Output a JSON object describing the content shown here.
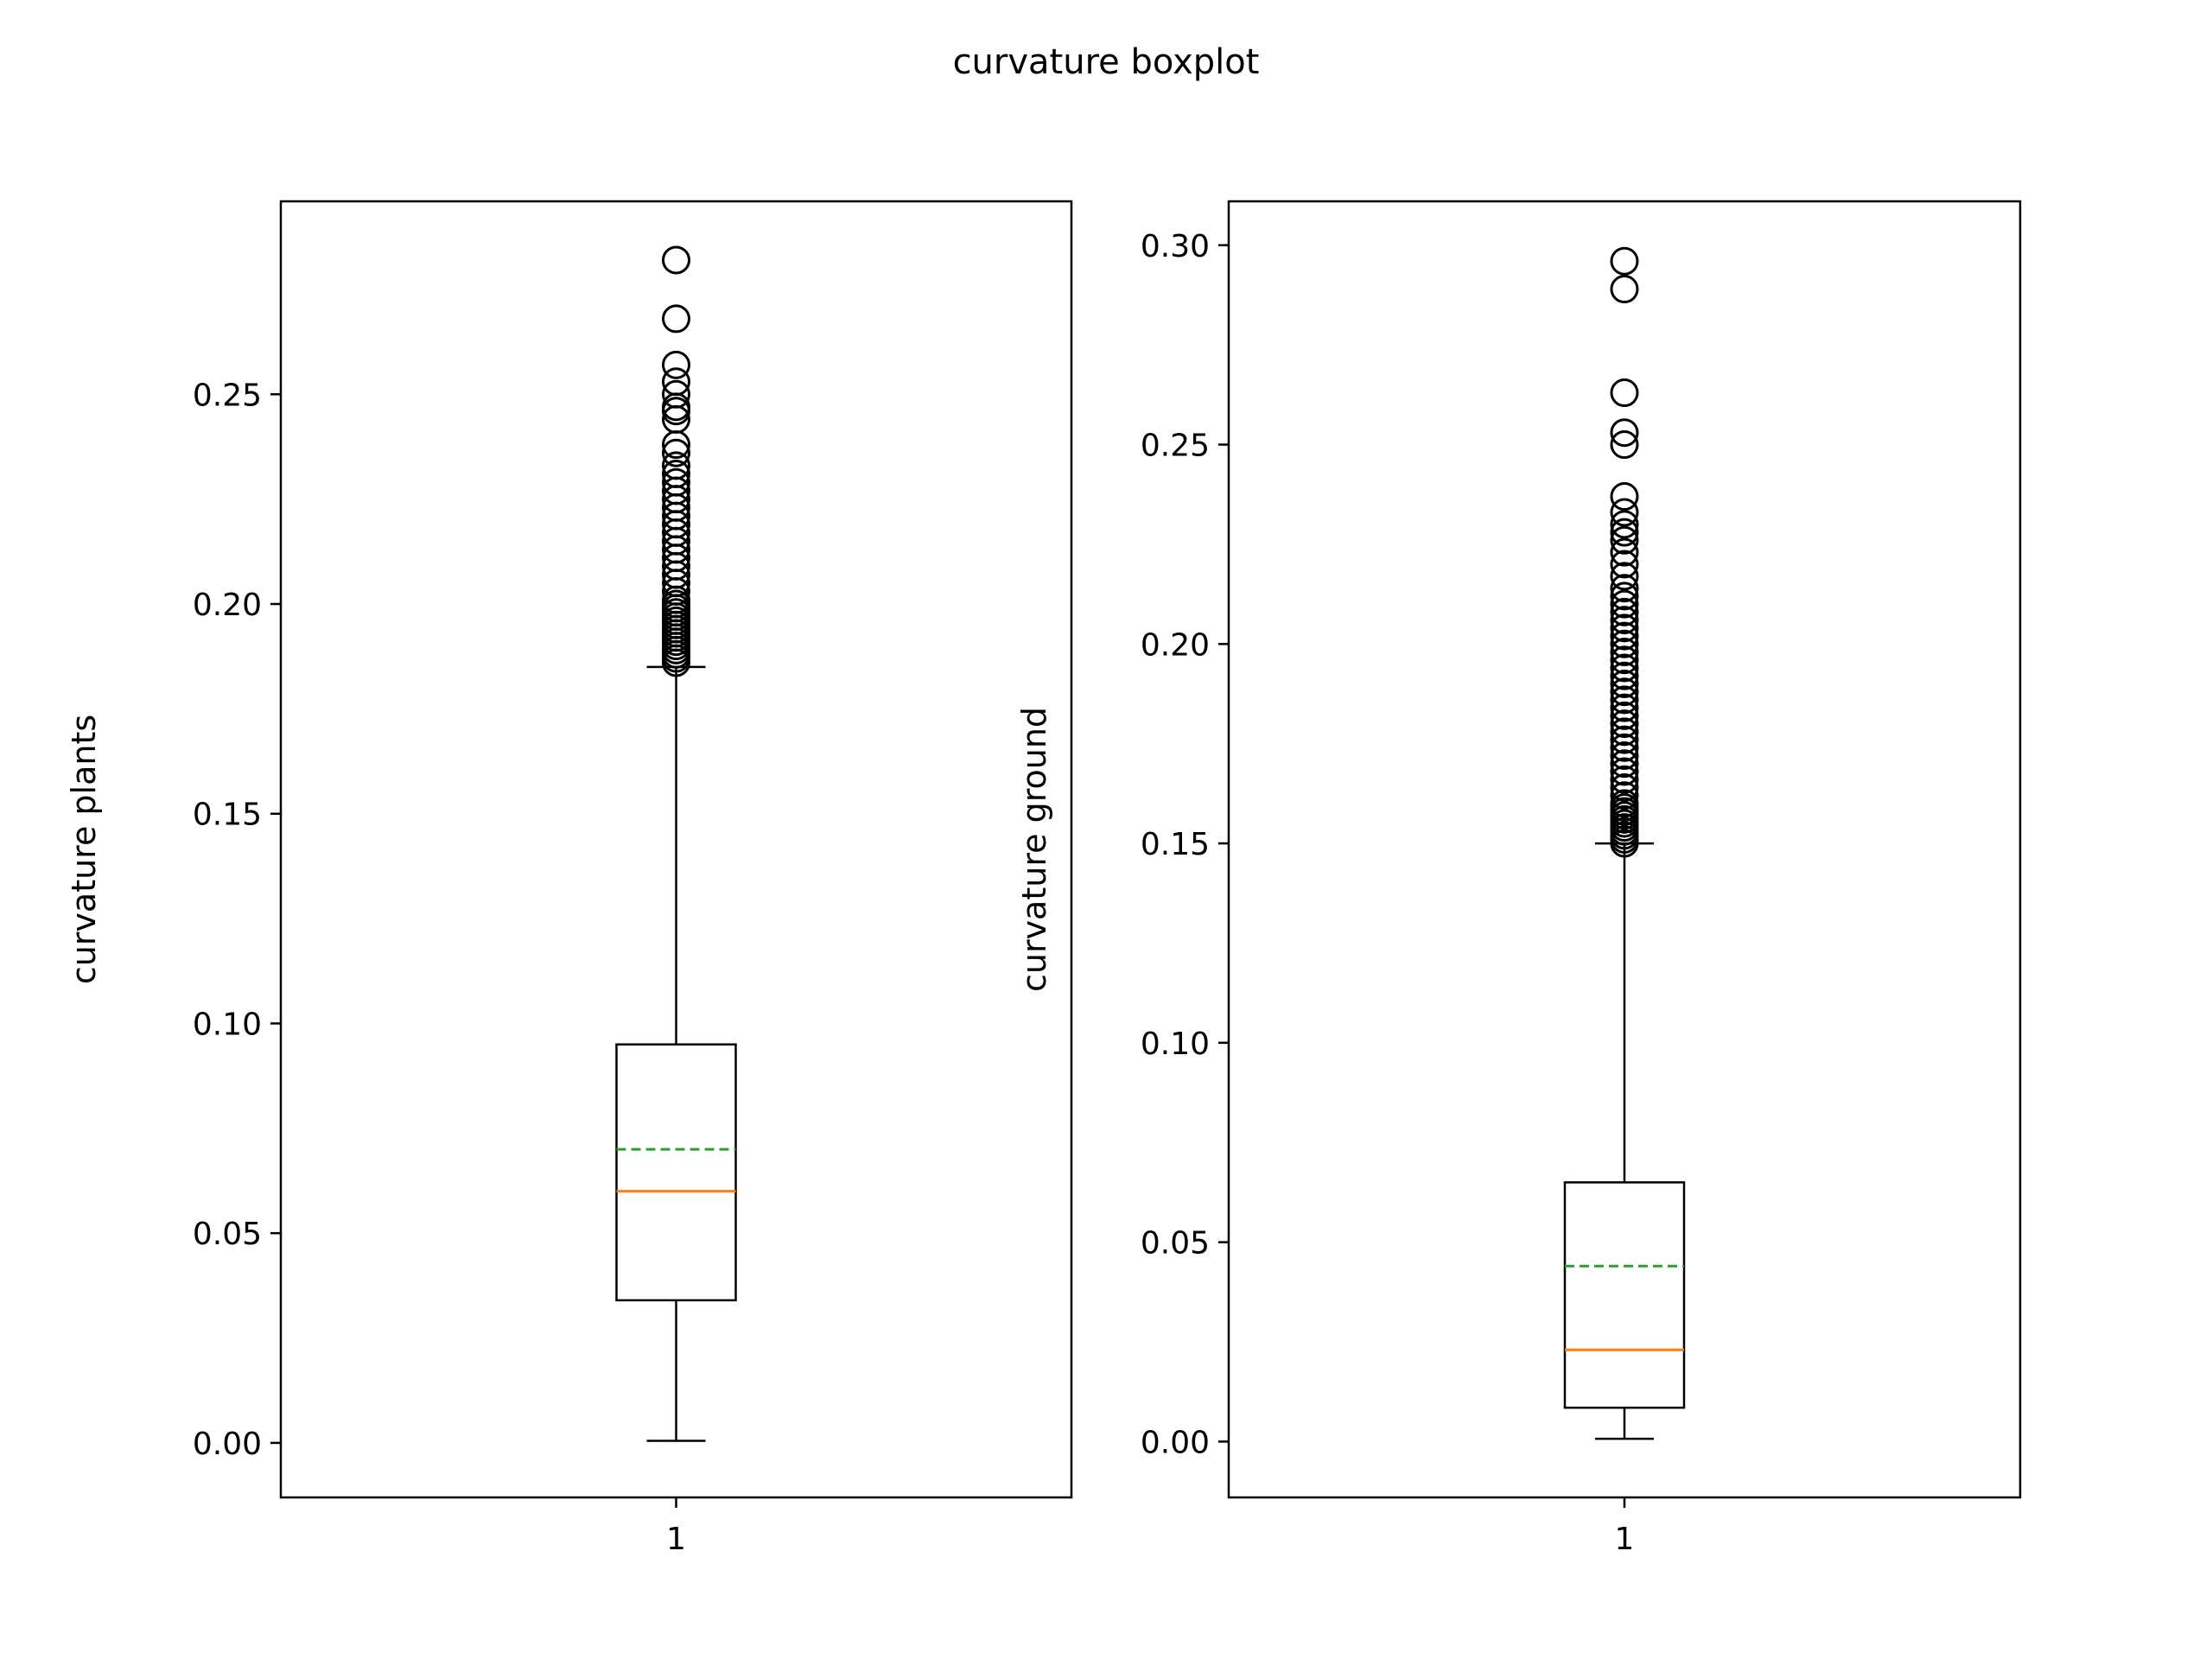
{
  "figure": {
    "suptitle": "curvature boxplot"
  },
  "colors": {
    "box": "#000000",
    "median": "#ff7f0e",
    "mean": "#2ca02c",
    "flier": "#000000"
  },
  "chart_data": [
    {
      "type": "box",
      "title": "",
      "xlabel": "",
      "ylabel": "curvature plants",
      "categories": [
        "1"
      ],
      "ylim": [
        -0.013,
        0.296
      ],
      "yticks": [
        0.0,
        0.05,
        0.1,
        0.15,
        0.2,
        0.25
      ],
      "ytick_labels": [
        "0.00",
        "0.05",
        "0.10",
        "0.15",
        "0.20",
        "0.25"
      ],
      "grid": false,
      "box": {
        "whisker_low": 0.0005,
        "q1": 0.034,
        "median": 0.06,
        "mean": 0.07,
        "q3": 0.095,
        "whisker_high": 0.185,
        "showmeans_line": true
      },
      "fliers": [
        0.186,
        0.187,
        0.188,
        0.189,
        0.19,
        0.191,
        0.192,
        0.193,
        0.194,
        0.195,
        0.196,
        0.197,
        0.198,
        0.199,
        0.2,
        0.201,
        0.203,
        0.205,
        0.207,
        0.209,
        0.211,
        0.213,
        0.215,
        0.217,
        0.219,
        0.221,
        0.223,
        0.225,
        0.227,
        0.229,
        0.231,
        0.233,
        0.236,
        0.238,
        0.244,
        0.246,
        0.247,
        0.25,
        0.253,
        0.257,
        0.268,
        0.282
      ]
    },
    {
      "type": "box",
      "title": "",
      "xlabel": "",
      "ylabel": "curvature ground",
      "categories": [
        "1"
      ],
      "ylim": [
        -0.014,
        0.311
      ],
      "yticks": [
        0.0,
        0.05,
        0.1,
        0.15,
        0.2,
        0.25,
        0.3
      ],
      "ytick_labels": [
        "0.00",
        "0.05",
        "0.10",
        "0.15",
        "0.20",
        "0.25",
        "0.30"
      ],
      "grid": false,
      "box": {
        "whisker_low": 0.0007,
        "q1": 0.0085,
        "median": 0.023,
        "mean": 0.044,
        "q3": 0.065,
        "whisker_high": 0.15,
        "showmeans_line": true
      },
      "fliers": [
        0.15,
        0.151,
        0.152,
        0.153,
        0.154,
        0.155,
        0.156,
        0.157,
        0.158,
        0.159,
        0.16,
        0.162,
        0.164,
        0.166,
        0.168,
        0.17,
        0.172,
        0.174,
        0.176,
        0.178,
        0.18,
        0.182,
        0.184,
        0.186,
        0.188,
        0.19,
        0.192,
        0.194,
        0.196,
        0.198,
        0.2,
        0.202,
        0.204,
        0.206,
        0.208,
        0.21,
        0.212,
        0.214,
        0.217,
        0.22,
        0.223,
        0.226,
        0.228,
        0.23,
        0.233,
        0.237,
        0.25,
        0.253,
        0.263,
        0.289,
        0.296
      ]
    }
  ]
}
